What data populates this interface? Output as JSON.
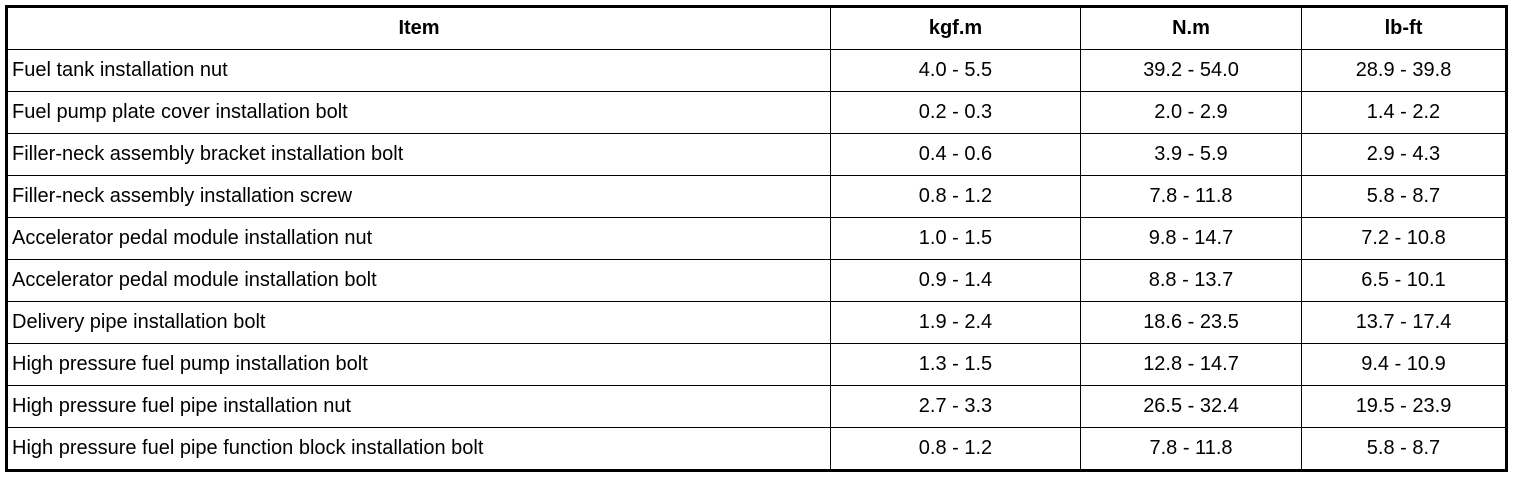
{
  "table": {
    "headers": [
      "Item",
      "kgf.m",
      "N.m",
      "lb-ft"
    ],
    "rows": [
      [
        "Fuel tank installation nut",
        "4.0 - 5.5",
        "39.2 - 54.0",
        "28.9 - 39.8"
      ],
      [
        "Fuel pump plate cover installation bolt",
        "0.2 - 0.3",
        "2.0 - 2.9",
        "1.4 - 2.2"
      ],
      [
        "Filler-neck assembly bracket installation bolt",
        "0.4 - 0.6",
        "3.9 - 5.9",
        "2.9 - 4.3"
      ],
      [
        "Filler-neck assembly installation screw",
        "0.8 - 1.2",
        "7.8 - 11.8",
        "5.8 - 8.7"
      ],
      [
        "Accelerator pedal module installation nut",
        "1.0 - 1.5",
        "9.8 - 14.7",
        "7.2 - 10.8"
      ],
      [
        "Accelerator pedal module installation bolt",
        "0.9 - 1.4",
        "8.8 - 13.7",
        "6.5 - 10.1"
      ],
      [
        "Delivery pipe installation bolt",
        "1.9 - 2.4",
        "18.6 - 23.5",
        "13.7 - 17.4"
      ],
      [
        "High pressure fuel pump installation bolt",
        "1.3 - 1.5",
        "12.8 - 14.7",
        "9.4 - 10.9"
      ],
      [
        "High pressure fuel pipe installation nut",
        "2.7 - 3.3",
        "26.5 - 32.4",
        "19.5 - 23.9"
      ],
      [
        "High pressure fuel pipe function block installation bolt",
        "0.8 - 1.2",
        "7.8 - 11.8",
        "5.8 - 8.7"
      ]
    ]
  }
}
